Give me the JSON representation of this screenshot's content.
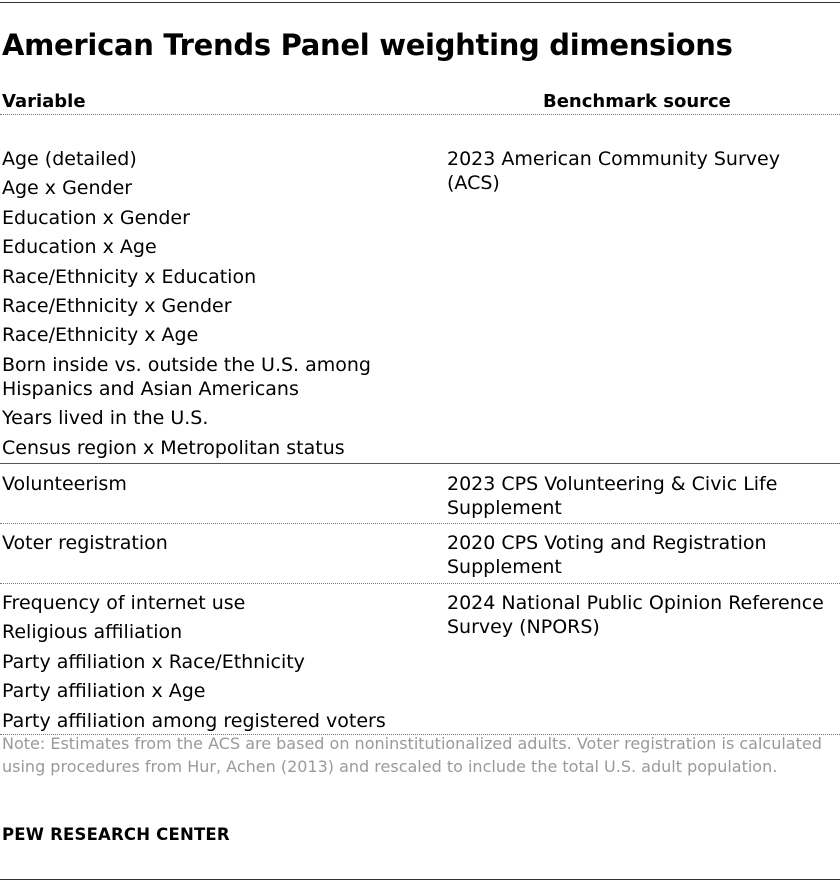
{
  "title": "American Trends Panel weighting dimensions",
  "headers": {
    "variable": "Variable",
    "benchmark": "Benchmark source"
  },
  "groups": [
    {
      "variables": [
        "Age (detailed)",
        "Age x Gender",
        "Education x Gender",
        "Education x Age",
        "Race/Ethnicity x Education",
        "Race/Ethnicity x Gender",
        "Race/Ethnicity x Age",
        "Born inside vs. outside the U.S. among Hispanics and Asian Americans",
        "Years lived in the U.S.",
        "Census region x Metropolitan status"
      ],
      "source": "2023 American Community Survey (ACS)"
    },
    {
      "variables": [
        "Volunteerism"
      ],
      "source": "2023 CPS Volunteering & Civic Life Supplement"
    },
    {
      "variables": [
        "Voter registration"
      ],
      "source": "2020 CPS Voting and Registration Supplement"
    },
    {
      "variables": [
        "Frequency of internet use",
        "Religious affiliation",
        "Party affiliation x Race/Ethnicity",
        "Party affiliation x Age",
        "Party affiliation among registered voters"
      ],
      "source": "2024 National Public Opinion Reference Survey (NPORS)"
    }
  ],
  "note": "Note: Estimates from the ACS are based on noninstitutionalized adults. Voter registration is calculated using procedures from Hur, Achen (2013) and rescaled to include the total U.S. adult population.",
  "source_credit": "PEW RESEARCH CENTER"
}
